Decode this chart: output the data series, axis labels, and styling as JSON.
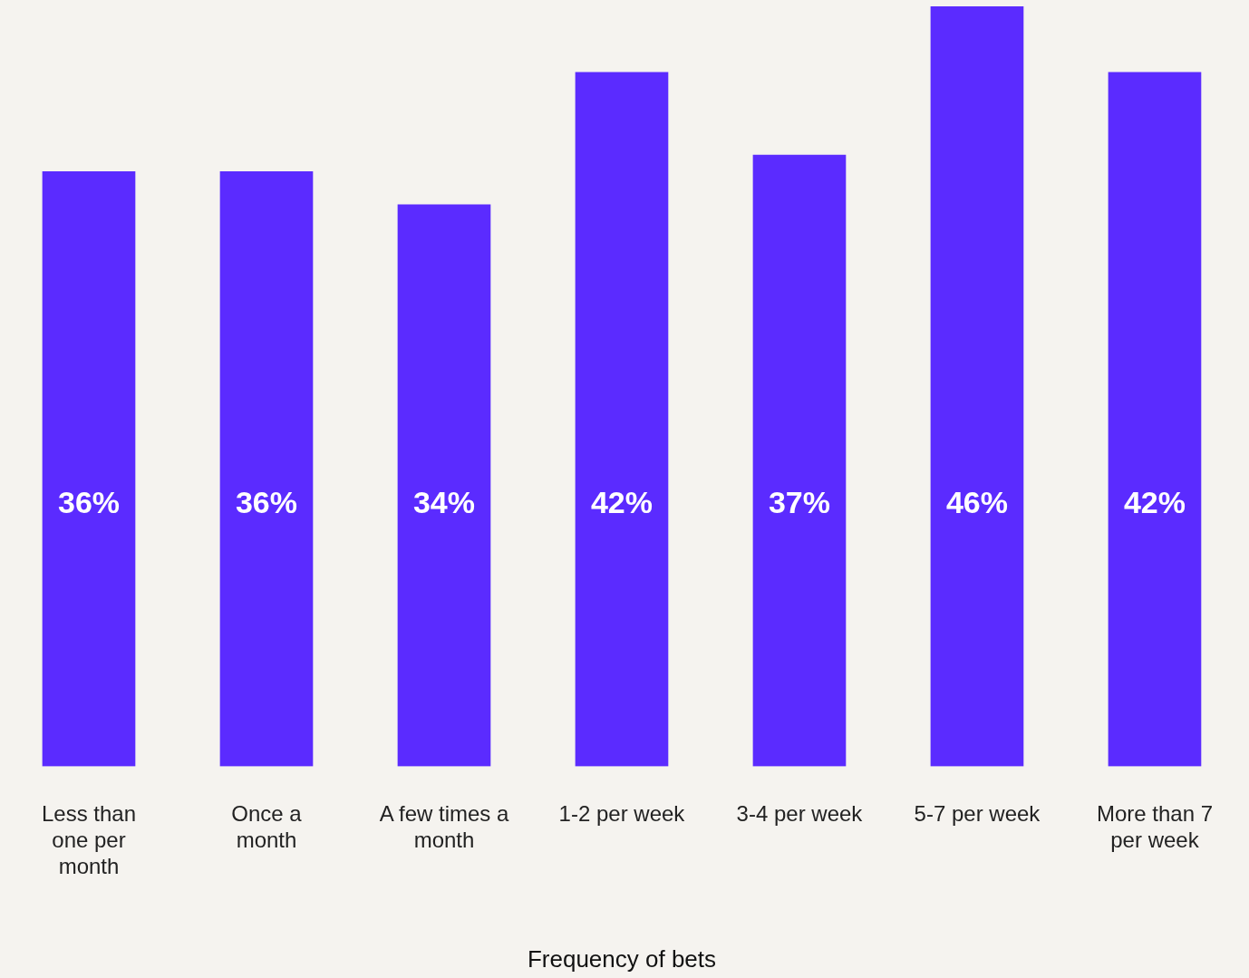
{
  "chart_data": {
    "type": "bar",
    "categories": [
      "Less than one per month",
      "Once a month",
      "A few times a month",
      "1-2 per week",
      "3-4 per week",
      "5-7 per week",
      "More than 7 per week"
    ],
    "values": [
      36,
      36,
      34,
      42,
      37,
      46,
      42
    ],
    "value_labels": [
      "36%",
      "36%",
      "34%",
      "42%",
      "37%",
      "46%",
      "42%"
    ],
    "color": "#5b2bff",
    "xlabel": "Frequency of bets",
    "tick_labels": "x",
    "grid": false,
    "legend": false
  }
}
